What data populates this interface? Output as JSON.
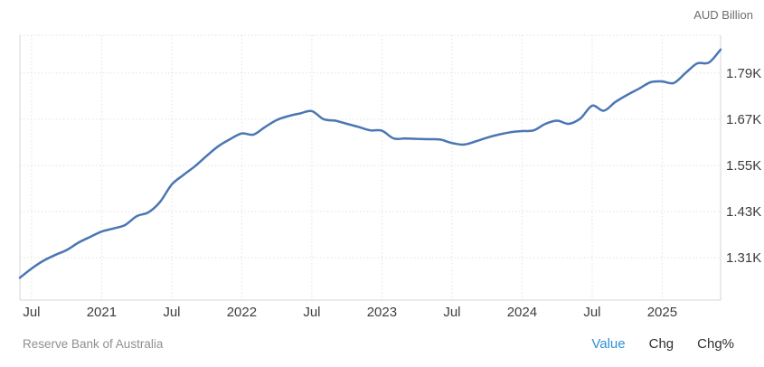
{
  "header": {
    "unit_label": "AUD Billion"
  },
  "footer": {
    "source": "Reserve Bank of Australia",
    "tabs": [
      {
        "id": "value",
        "label": "Value",
        "active": true
      },
      {
        "id": "chg",
        "label": "Chg",
        "active": false
      },
      {
        "id": "chgpct",
        "label": "Chg%",
        "active": false
      }
    ]
  },
  "colors": {
    "line": "#4b76b3",
    "grid": "#e2e2e2",
    "border": "#d4d4d4",
    "axis_text": "#3d3d3d",
    "active_tab": "#2e8fd4",
    "tab_text": "#2f2f2f",
    "source_text": "#8f9092",
    "unit_text": "#6b6e72"
  },
  "chart_data": {
    "type": "line",
    "title": "",
    "xlabel": "",
    "ylabel": "AUD Billion",
    "legend": [],
    "grid": "dotted",
    "x": [
      "2020-06",
      "2020-07",
      "2020-08",
      "2020-09",
      "2020-10",
      "2020-11",
      "2020-12",
      "2021-01",
      "2021-02",
      "2021-03",
      "2021-04",
      "2021-05",
      "2021-06",
      "2021-07",
      "2021-08",
      "2021-09",
      "2021-10",
      "2021-11",
      "2021-12",
      "2022-01",
      "2022-02",
      "2022-03",
      "2022-04",
      "2022-05",
      "2022-06",
      "2022-07",
      "2022-08",
      "2022-09",
      "2022-10",
      "2022-11",
      "2022-12",
      "2023-01",
      "2023-02",
      "2023-03",
      "2023-04",
      "2023-05",
      "2023-06",
      "2023-07",
      "2023-08",
      "2023-09",
      "2023-10",
      "2023-11",
      "2023-12",
      "2024-01",
      "2024-02",
      "2024-03",
      "2024-04",
      "2024-05",
      "2024-06",
      "2024-07",
      "2024-08",
      "2024-09",
      "2024-10",
      "2024-11",
      "2024-12",
      "2025-01",
      "2025-02",
      "2025-03",
      "2025-04",
      "2025-05",
      "2025-06"
    ],
    "values": [
      1258,
      1282,
      1302,
      1317,
      1330,
      1349,
      1364,
      1378,
      1386,
      1395,
      1418,
      1428,
      1455,
      1500,
      1525,
      1548,
      1575,
      1600,
      1618,
      1633,
      1630,
      1650,
      1668,
      1678,
      1685,
      1691,
      1670,
      1666,
      1658,
      1650,
      1641,
      1640,
      1620,
      1620,
      1619,
      1618,
      1617,
      1608,
      1604,
      1612,
      1622,
      1630,
      1636,
      1639,
      1641,
      1658,
      1666,
      1658,
      1672,
      1705,
      1692,
      1715,
      1733,
      1749,
      1766,
      1768,
      1764,
      1790,
      1815,
      1817,
      1851
    ],
    "x_tick_labels": [
      "Jul",
      "2021",
      "Jul",
      "2022",
      "Jul",
      "2023",
      "Jul",
      "2024",
      "Jul",
      "2025"
    ],
    "x_tick_indices": [
      1,
      7,
      13,
      19,
      25,
      31,
      37,
      43,
      49,
      55
    ],
    "y_tick_labels": [
      "1.79K",
      "1.67K",
      "1.55K",
      "1.43K",
      "1.31K"
    ],
    "y_tick_values": [
      1790,
      1670,
      1550,
      1430,
      1310
    ],
    "ylim": [
      1200,
      1888
    ],
    "xlim_index": [
      0,
      60
    ]
  }
}
